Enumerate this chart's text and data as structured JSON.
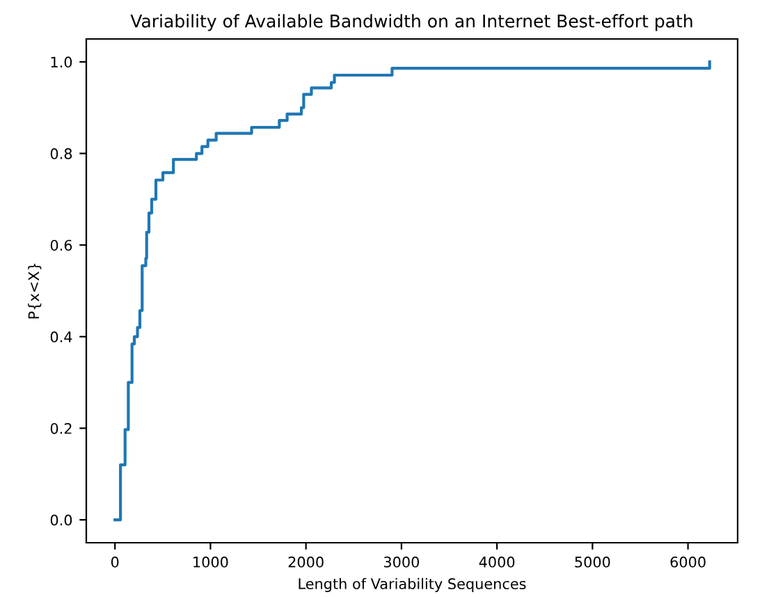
{
  "chart_data": {
    "type": "step",
    "title": "Variability of Available Bandwidth on an Internet Best-effort path",
    "xlabel": "Length of Variability Sequences",
    "ylabel": "P{x<X}",
    "x": [
      0,
      33,
      58,
      106,
      140,
      179,
      203,
      236,
      261,
      285,
      323,
      332,
      356,
      385,
      429,
      502,
      612,
      853,
      911,
      973,
      1060,
      1431,
      1721,
      1803,
      1952,
      1976,
      2057,
      2265,
      2298,
      2902,
      6227
    ],
    "series": [
      {
        "color": "#1f77b4",
        "values": [
          0,
          0,
          0.12,
          0.197,
          0.3,
          0.384,
          0.4,
          0.42,
          0.457,
          0.555,
          0.571,
          0.628,
          0.67,
          0.7,
          0.742,
          0.758,
          0.787,
          0.8,
          0.815,
          0.829,
          0.844,
          0.857,
          0.872,
          0.886,
          0.9,
          0.929,
          0.943,
          0.955,
          0.971,
          0.986,
          1.0
        ]
      }
    ],
    "xlim": [
      -300,
      6520
    ],
    "xticks": [
      0,
      1000,
      2000,
      3000,
      4000,
      5000,
      6000
    ],
    "ylim": [
      -0.05,
      1.05
    ],
    "yticks": [
      {
        "value": 0,
        "label": "0.0"
      },
      {
        "value": 0.2,
        "label": "0.2"
      },
      {
        "value": 0.4,
        "label": "0.4"
      },
      {
        "value": 0.6,
        "label": "0.6"
      },
      {
        "value": 0.8,
        "label": "0.8"
      },
      {
        "value": 1.0,
        "label": "1.0"
      }
    ],
    "grid": false
  }
}
